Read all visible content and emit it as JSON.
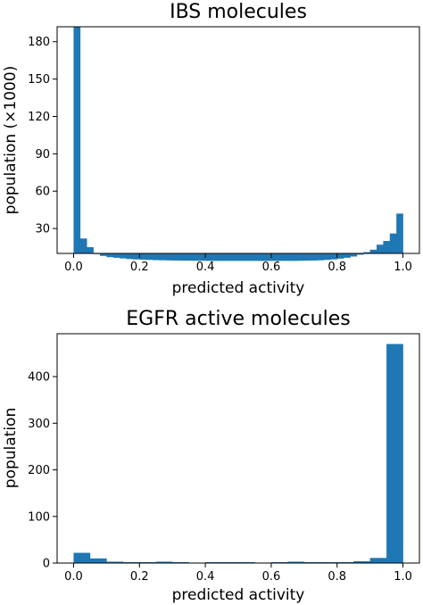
{
  "chart_data": [
    {
      "type": "bar",
      "title": "IBS molecules",
      "xlabel": "predicted activity",
      "ylabel": "population (×1000)",
      "xlim": [
        -0.05,
        1.05
      ],
      "ylim": [
        10,
        192
      ],
      "xticks": [
        0.0,
        0.2,
        0.4,
        0.6,
        0.8,
        1.0
      ],
      "xtick_labels": [
        "0.0",
        "0.2",
        "0.4",
        "0.6",
        "0.8",
        "1.0"
      ],
      "yticks": [
        30,
        60,
        90,
        120,
        150,
        180
      ],
      "ytick_labels": [
        "30",
        "60",
        "90",
        "120",
        "150",
        "180"
      ],
      "grid": false,
      "bar_color": "#1f77b4",
      "bin_width": 0.02,
      "x": [
        0.0,
        0.02,
        0.04,
        0.06,
        0.08,
        0.1,
        0.12,
        0.14,
        0.16,
        0.18,
        0.2,
        0.22,
        0.24,
        0.26,
        0.28,
        0.3,
        0.32,
        0.34,
        0.36,
        0.38,
        0.4,
        0.42,
        0.44,
        0.46,
        0.48,
        0.5,
        0.52,
        0.54,
        0.56,
        0.58,
        0.6,
        0.62,
        0.64,
        0.66,
        0.68,
        0.7,
        0.72,
        0.74,
        0.76,
        0.78,
        0.8,
        0.82,
        0.84,
        0.86,
        0.88,
        0.9,
        0.92,
        0.94,
        0.96,
        0.98
      ],
      "values": [
        192,
        22,
        15,
        10,
        8,
        7,
        6.5,
        6,
        5.5,
        5.2,
        5,
        4.8,
        4.6,
        4.5,
        4.4,
        4.3,
        4.2,
        4.2,
        4.1,
        4.1,
        4,
        4,
        4,
        4,
        4,
        4,
        4,
        4,
        4,
        4,
        4,
        4,
        4,
        4,
        4.1,
        4.2,
        4.3,
        4.5,
        4.8,
        5.2,
        5.8,
        6.5,
        7.5,
        9,
        11,
        13,
        17,
        20,
        26,
        42
      ]
    },
    {
      "type": "bar",
      "title": "EGFR active molecules",
      "xlabel": "predicted activity",
      "ylabel": "population",
      "xlim": [
        -0.05,
        1.05
      ],
      "ylim": [
        0,
        492
      ],
      "xticks": [
        0.0,
        0.2,
        0.4,
        0.6,
        0.8,
        1.0
      ],
      "xtick_labels": [
        "0.0",
        "0.2",
        "0.4",
        "0.6",
        "0.8",
        "1.0"
      ],
      "yticks": [
        0,
        100,
        200,
        300,
        400
      ],
      "ytick_labels": [
        "0",
        "100",
        "200",
        "300",
        "400"
      ],
      "grid": false,
      "bar_color": "#1f77b4",
      "bin_width": 0.05,
      "x": [
        0.0,
        0.05,
        0.1,
        0.15,
        0.2,
        0.25,
        0.3,
        0.35,
        0.4,
        0.45,
        0.5,
        0.55,
        0.6,
        0.65,
        0.7,
        0.75,
        0.8,
        0.85,
        0.9,
        0.95
      ],
      "values": [
        22,
        10,
        3,
        2,
        2,
        3,
        2,
        1,
        2,
        2,
        2,
        1,
        2,
        3,
        2,
        2,
        2,
        4,
        11,
        470
      ]
    }
  ]
}
